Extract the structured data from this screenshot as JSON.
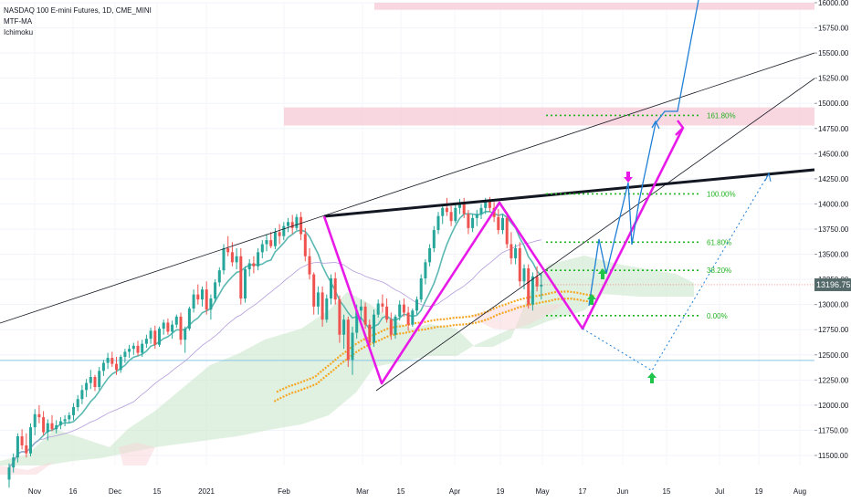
{
  "legend": {
    "symbol_line": "NASDAQ 100 E-mini Futures, 1D, CME_MINI",
    "indicator_1": "MTF-MA",
    "indicator_2": "Ichimoku"
  },
  "chart_data": {
    "type": "candlestick",
    "symbol": "NASDAQ 100 E-mini Futures",
    "interval": "1D",
    "exchange": "CME_MINI",
    "y_axis": {
      "min": 11400,
      "max": 16000,
      "ticks": [
        11500,
        11750,
        12000,
        12250,
        12500,
        12750,
        13000,
        13250,
        13500,
        13750,
        14000,
        14250,
        14500,
        14750,
        15000,
        15250,
        15500,
        15750,
        16000
      ],
      "tick_labels": [
        "11500.00",
        "11750.00",
        "12000.00",
        "12250.00",
        "12500.00",
        "12750.00",
        "13000.00",
        "13250.00",
        "13500.00",
        "13750.00",
        "14000.00",
        "14250.00",
        "14500.00",
        "14750.00",
        "15000.00",
        "15250.00",
        "15500.00",
        "15750.00",
        "16000.00"
      ]
    },
    "x_axis": {
      "tick_labels": [
        "Nov",
        "16",
        "Dec",
        "15",
        "2021",
        "Feb",
        "Mar",
        "15",
        "Apr",
        "19",
        "May",
        "17",
        "Jun",
        "15",
        "Jul",
        "19",
        "Aug"
      ]
    },
    "last_price": "13196.75",
    "fib_levels": [
      {
        "label": "161.80%",
        "price": 14880
      },
      {
        "label": "100.00%",
        "price": 14100
      },
      {
        "label": "61.80%",
        "price": 13620
      },
      {
        "label": "38.20%",
        "price": 13340
      },
      {
        "label": "0.00%",
        "price": 12890
      }
    ],
    "zones": [
      {
        "name": "upper-resistance",
        "from": 15930,
        "to": 16000
      },
      {
        "name": "target-zone",
        "from": 14780,
        "to": 14960
      }
    ],
    "horizontal_support": 12445,
    "colors": {
      "up": "#26a69a",
      "down": "#ef5350",
      "pattern": "#e81ae8",
      "projection": "#1e7fd6",
      "fib": "#22b322",
      "trend": "#131722",
      "ma_fast": "#5cb8b2",
      "ma_slow": "#b39ddb",
      "ma_gold": "#f5a623",
      "cloud_green": "#c8e6c9",
      "cloud_red": "#f8d7da",
      "zone": "#f8d0da",
      "support": "#87c5e8"
    },
    "candles": [
      {
        "o": 11260,
        "h": 11420,
        "l": 11180,
        "c": 11380
      },
      {
        "o": 11380,
        "h": 11520,
        "l": 11330,
        "c": 11480
      },
      {
        "o": 11480,
        "h": 11720,
        "l": 11430,
        "c": 11690
      },
      {
        "o": 11690,
        "h": 11760,
        "l": 11560,
        "c": 11600
      },
      {
        "o": 11600,
        "h": 11720,
        "l": 11480,
        "c": 11520
      },
      {
        "o": 11520,
        "h": 11820,
        "l": 11490,
        "c": 11780
      },
      {
        "o": 11780,
        "h": 11960,
        "l": 11700,
        "c": 11910
      },
      {
        "o": 11910,
        "h": 12000,
        "l": 11820,
        "c": 11880
      },
      {
        "o": 11880,
        "h": 11940,
        "l": 11700,
        "c": 11730
      },
      {
        "o": 11730,
        "h": 11860,
        "l": 11650,
        "c": 11820
      },
      {
        "o": 11820,
        "h": 11900,
        "l": 11740,
        "c": 11760
      },
      {
        "o": 11760,
        "h": 11850,
        "l": 11720,
        "c": 11800
      },
      {
        "o": 11800,
        "h": 11880,
        "l": 11760,
        "c": 11840
      },
      {
        "o": 11840,
        "h": 11900,
        "l": 11790,
        "c": 11860
      },
      {
        "o": 11860,
        "h": 11930,
        "l": 11820,
        "c": 11900
      },
      {
        "o": 11900,
        "h": 12020,
        "l": 11850,
        "c": 11980
      },
      {
        "o": 11980,
        "h": 12100,
        "l": 11940,
        "c": 12060
      },
      {
        "o": 12060,
        "h": 12200,
        "l": 12010,
        "c": 12150
      },
      {
        "o": 12150,
        "h": 12260,
        "l": 12080,
        "c": 12220
      },
      {
        "o": 12220,
        "h": 12350,
        "l": 12160,
        "c": 12280
      },
      {
        "o": 12280,
        "h": 12300,
        "l": 12140,
        "c": 12180
      },
      {
        "o": 12180,
        "h": 12380,
        "l": 12150,
        "c": 12340
      },
      {
        "o": 12340,
        "h": 12450,
        "l": 12290,
        "c": 12420
      },
      {
        "o": 12420,
        "h": 12520,
        "l": 12360,
        "c": 12470
      },
      {
        "o": 12470,
        "h": 12530,
        "l": 12380,
        "c": 12410
      },
      {
        "o": 12410,
        "h": 12480,
        "l": 12300,
        "c": 12350
      },
      {
        "o": 12350,
        "h": 12500,
        "l": 12320,
        "c": 12480
      },
      {
        "o": 12480,
        "h": 12560,
        "l": 12420,
        "c": 12530
      },
      {
        "o": 12530,
        "h": 12600,
        "l": 12470,
        "c": 12560
      },
      {
        "o": 12560,
        "h": 12620,
        "l": 12500,
        "c": 12590
      },
      {
        "o": 12590,
        "h": 12640,
        "l": 12490,
        "c": 12520
      },
      {
        "o": 12520,
        "h": 12650,
        "l": 12480,
        "c": 12610
      },
      {
        "o": 12610,
        "h": 12700,
        "l": 12570,
        "c": 12660
      },
      {
        "o": 12660,
        "h": 12770,
        "l": 12610,
        "c": 12740
      },
      {
        "o": 12740,
        "h": 12790,
        "l": 12560,
        "c": 12600
      },
      {
        "o": 12600,
        "h": 12780,
        "l": 12580,
        "c": 12760
      },
      {
        "o": 12760,
        "h": 12850,
        "l": 12700,
        "c": 12820
      },
      {
        "o": 12820,
        "h": 12860,
        "l": 12700,
        "c": 12730
      },
      {
        "o": 12730,
        "h": 12840,
        "l": 12660,
        "c": 12800
      },
      {
        "o": 12800,
        "h": 12900,
        "l": 12770,
        "c": 12880
      },
      {
        "o": 12880,
        "h": 12920,
        "l": 12600,
        "c": 12650
      },
      {
        "o": 12650,
        "h": 12780,
        "l": 12520,
        "c": 12760
      },
      {
        "o": 12760,
        "h": 12980,
        "l": 12740,
        "c": 12960
      },
      {
        "o": 12960,
        "h": 13150,
        "l": 12920,
        "c": 13100
      },
      {
        "o": 13100,
        "h": 13200,
        "l": 13000,
        "c": 13050
      },
      {
        "o": 13050,
        "h": 13180,
        "l": 12980,
        "c": 13150
      },
      {
        "o": 13150,
        "h": 13230,
        "l": 12900,
        "c": 12950
      },
      {
        "o": 12950,
        "h": 13100,
        "l": 12850,
        "c": 13060
      },
      {
        "o": 13060,
        "h": 13250,
        "l": 13020,
        "c": 13220
      },
      {
        "o": 13220,
        "h": 13370,
        "l": 13180,
        "c": 13340
      },
      {
        "o": 13340,
        "h": 13600,
        "l": 13300,
        "c": 13560
      },
      {
        "o": 13560,
        "h": 13680,
        "l": 13480,
        "c": 13520
      },
      {
        "o": 13520,
        "h": 13620,
        "l": 13380,
        "c": 13420
      },
      {
        "o": 13420,
        "h": 13560,
        "l": 13350,
        "c": 13480
      },
      {
        "o": 13480,
        "h": 13560,
        "l": 13000,
        "c": 13060
      },
      {
        "o": 13060,
        "h": 13380,
        "l": 13020,
        "c": 13350
      },
      {
        "o": 13350,
        "h": 13450,
        "l": 13280,
        "c": 13410
      },
      {
        "o": 13410,
        "h": 13480,
        "l": 13310,
        "c": 13380
      },
      {
        "o": 13380,
        "h": 13560,
        "l": 13340,
        "c": 13520
      },
      {
        "o": 13520,
        "h": 13640,
        "l": 13460,
        "c": 13600
      },
      {
        "o": 13600,
        "h": 13700,
        "l": 13530,
        "c": 13640
      },
      {
        "o": 13640,
        "h": 13720,
        "l": 13560,
        "c": 13580
      },
      {
        "o": 13580,
        "h": 13760,
        "l": 13550,
        "c": 13720
      },
      {
        "o": 13720,
        "h": 13800,
        "l": 13600,
        "c": 13680
      },
      {
        "o": 13680,
        "h": 13820,
        "l": 13640,
        "c": 13780
      },
      {
        "o": 13780,
        "h": 13860,
        "l": 13720,
        "c": 13820
      },
      {
        "o": 13820,
        "h": 13890,
        "l": 13700,
        "c": 13760
      },
      {
        "o": 13760,
        "h": 13900,
        "l": 13740,
        "c": 13870
      },
      {
        "o": 13870,
        "h": 13920,
        "l": 13640,
        "c": 13700
      },
      {
        "o": 13700,
        "h": 13760,
        "l": 13430,
        "c": 13480
      },
      {
        "o": 13480,
        "h": 13560,
        "l": 13250,
        "c": 13300
      },
      {
        "o": 13300,
        "h": 13320,
        "l": 12900,
        "c": 12980
      },
      {
        "o": 12980,
        "h": 13180,
        "l": 12900,
        "c": 13120
      },
      {
        "o": 13120,
        "h": 13180,
        "l": 12780,
        "c": 12850
      },
      {
        "o": 12850,
        "h": 13100,
        "l": 12820,
        "c": 13060
      },
      {
        "o": 13060,
        "h": 13300,
        "l": 13000,
        "c": 13260
      },
      {
        "o": 13260,
        "h": 13320,
        "l": 13000,
        "c": 13050
      },
      {
        "o": 13050,
        "h": 13090,
        "l": 12620,
        "c": 12700
      },
      {
        "o": 12700,
        "h": 12900,
        "l": 12560,
        "c": 12850
      },
      {
        "o": 12850,
        "h": 12880,
        "l": 12380,
        "c": 12450
      },
      {
        "o": 12450,
        "h": 12780,
        "l": 12300,
        "c": 12720
      },
      {
        "o": 12720,
        "h": 13000,
        "l": 12660,
        "c": 12940
      },
      {
        "o": 12940,
        "h": 13050,
        "l": 12850,
        "c": 12980
      },
      {
        "o": 12980,
        "h": 13020,
        "l": 12760,
        "c": 12800
      },
      {
        "o": 12800,
        "h": 12850,
        "l": 12550,
        "c": 12620
      },
      {
        "o": 12620,
        "h": 12950,
        "l": 12580,
        "c": 12900
      },
      {
        "o": 12900,
        "h": 13050,
        "l": 12870,
        "c": 13010
      },
      {
        "o": 13010,
        "h": 13100,
        "l": 12920,
        "c": 12980
      },
      {
        "o": 12980,
        "h": 13060,
        "l": 12820,
        "c": 12850
      },
      {
        "o": 12850,
        "h": 12920,
        "l": 12650,
        "c": 12700
      },
      {
        "o": 12700,
        "h": 12900,
        "l": 12660,
        "c": 12880
      },
      {
        "o": 12880,
        "h": 13040,
        "l": 12840,
        "c": 13000
      },
      {
        "o": 13000,
        "h": 13060,
        "l": 12880,
        "c": 12920
      },
      {
        "o": 12920,
        "h": 12980,
        "l": 12740,
        "c": 12800
      },
      {
        "o": 12800,
        "h": 12960,
        "l": 12780,
        "c": 12940
      },
      {
        "o": 12940,
        "h": 13080,
        "l": 12900,
        "c": 13050
      },
      {
        "o": 13050,
        "h": 13300,
        "l": 13020,
        "c": 13260
      },
      {
        "o": 13260,
        "h": 13450,
        "l": 13200,
        "c": 13420
      },
      {
        "o": 13420,
        "h": 13600,
        "l": 13380,
        "c": 13560
      },
      {
        "o": 13560,
        "h": 13780,
        "l": 13520,
        "c": 13740
      },
      {
        "o": 13740,
        "h": 13920,
        "l": 13700,
        "c": 13880
      },
      {
        "o": 13880,
        "h": 14000,
        "l": 13800,
        "c": 13960
      },
      {
        "o": 13960,
        "h": 14060,
        "l": 13880,
        "c": 13920
      },
      {
        "o": 13920,
        "h": 13980,
        "l": 13780,
        "c": 13830
      },
      {
        "o": 13830,
        "h": 14000,
        "l": 13810,
        "c": 13960
      },
      {
        "o": 13960,
        "h": 14050,
        "l": 13900,
        "c": 14010
      },
      {
        "o": 14010,
        "h": 14060,
        "l": 13860,
        "c": 13900
      },
      {
        "o": 13900,
        "h": 13940,
        "l": 13700,
        "c": 13760
      },
      {
        "o": 13760,
        "h": 13900,
        "l": 13720,
        "c": 13860
      },
      {
        "o": 13860,
        "h": 13940,
        "l": 13780,
        "c": 13900
      },
      {
        "o": 13900,
        "h": 14000,
        "l": 13850,
        "c": 13960
      },
      {
        "o": 13960,
        "h": 14060,
        "l": 13900,
        "c": 14040
      },
      {
        "o": 14040,
        "h": 14070,
        "l": 13920,
        "c": 13960
      },
      {
        "o": 13960,
        "h": 14020,
        "l": 13820,
        "c": 13870
      },
      {
        "o": 13870,
        "h": 13950,
        "l": 13700,
        "c": 13740
      },
      {
        "o": 13740,
        "h": 13900,
        "l": 13700,
        "c": 13860
      },
      {
        "o": 13860,
        "h": 13920,
        "l": 13560,
        "c": 13600
      },
      {
        "o": 13600,
        "h": 13720,
        "l": 13400,
        "c": 13460
      },
      {
        "o": 13460,
        "h": 13600,
        "l": 13400,
        "c": 13560
      },
      {
        "o": 13560,
        "h": 13620,
        "l": 13180,
        "c": 13230
      },
      {
        "o": 13230,
        "h": 13400,
        "l": 13150,
        "c": 13360
      },
      {
        "o": 13360,
        "h": 13400,
        "l": 12960,
        "c": 13000
      },
      {
        "o": 13000,
        "h": 13320,
        "l": 12940,
        "c": 13280
      },
      {
        "o": 13280,
        "h": 13380,
        "l": 13130,
        "c": 13180
      },
      {
        "o": 13180,
        "h": 13310,
        "l": 13050,
        "c": 13197
      }
    ]
  }
}
